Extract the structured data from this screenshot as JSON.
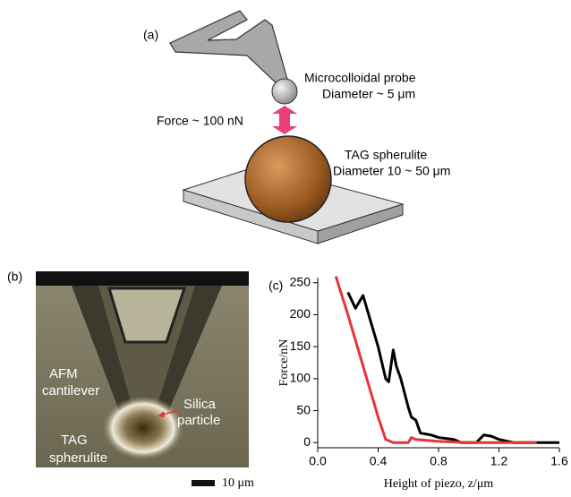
{
  "panels": {
    "a": {
      "label": "(a)",
      "probe": "Microcolloidal probe",
      "probe_diameter": "Diameter ~ 5 μm",
      "force": "Force ~ 100 nN",
      "spherulite": "TAG spherulite",
      "spherulite_diameter": "Diameter 10 ~ 50 μm"
    },
    "b": {
      "label": "(b)",
      "cantilever": [
        "AFM",
        "cantilever"
      ],
      "particle": [
        "Silica",
        "particle"
      ],
      "spherulite": [
        "TAG",
        "spherulite"
      ],
      "scale": "10 μm"
    },
    "c": {
      "label": "(c)"
    }
  },
  "chart_data": {
    "type": "line",
    "ylabel": "Force/nN",
    "xlabel": "Height of piezo, z/μm",
    "xlim": [
      0,
      1.6
    ],
    "ylim": [
      -8,
      258
    ],
    "xticks": [
      {
        "value": 0,
        "label": "0.0"
      },
      0.4,
      0.8,
      1.2,
      1.6
    ],
    "yticks": [
      0,
      50,
      100,
      150,
      200,
      250
    ],
    "series": [
      {
        "color": "#000000",
        "x": [
          0.2,
          0.25,
          0.3,
          0.35,
          0.4,
          0.45,
          0.47,
          0.5,
          0.52,
          0.55,
          0.6,
          0.62,
          0.65,
          0.68,
          0.75,
          0.8,
          0.9,
          0.95,
          1.05,
          1.1,
          1.15,
          1.2,
          1.3,
          1.6
        ],
        "values": [
          235,
          210,
          230,
          190,
          150,
          100,
          95,
          145,
          120,
          100,
          55,
          40,
          35,
          15,
          12,
          8,
          5,
          0,
          0,
          12,
          10,
          5,
          0,
          0
        ]
      },
      {
        "color": "#e8323c",
        "x": [
          0.12,
          0.2,
          0.3,
          0.4,
          0.45,
          0.5,
          0.6,
          0.62,
          0.65,
          0.8,
          1.0,
          1.45
        ],
        "values": [
          260,
          200,
          120,
          40,
          5,
          0,
          0,
          8,
          5,
          2,
          0,
          0
        ]
      }
    ]
  }
}
